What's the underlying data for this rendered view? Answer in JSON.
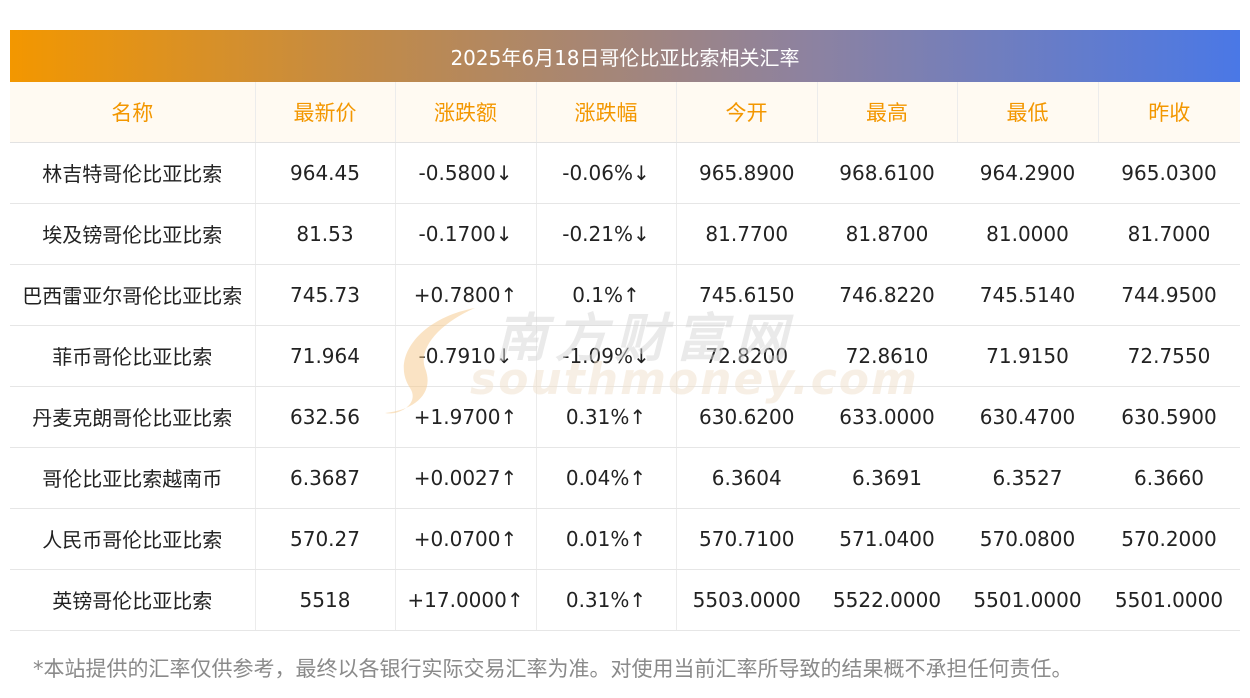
{
  "title": "2025年6月18日哥伦比亚比索相关汇率",
  "columns": [
    "名称",
    "最新价",
    "涨跌额",
    "涨跌幅",
    "今开",
    "最高",
    "最低",
    "昨收"
  ],
  "rows": [
    {
      "name": "林吉特哥伦比亚比索",
      "latest": "964.45",
      "change": "-0.5800↓",
      "pct": "-0.06%↓",
      "open": "965.8900",
      "high": "968.6100",
      "low": "964.2900",
      "prev": "965.0300",
      "dir": "down"
    },
    {
      "name": "埃及镑哥伦比亚比索",
      "latest": "81.53",
      "change": "-0.1700↓",
      "pct": "-0.21%↓",
      "open": "81.7700",
      "high": "81.8700",
      "low": "81.0000",
      "prev": "81.7000",
      "dir": "down"
    },
    {
      "name": "巴西雷亚尔哥伦比亚比索",
      "latest": "745.73",
      "change": "+0.7800↑",
      "pct": "0.1%↑",
      "open": "745.6150",
      "high": "746.8220",
      "low": "745.5140",
      "prev": "744.9500",
      "dir": "up"
    },
    {
      "name": "菲币哥伦比亚比索",
      "latest": "71.964",
      "change": "-0.7910↓",
      "pct": "-1.09%↓",
      "open": "72.8200",
      "high": "72.8610",
      "low": "71.9150",
      "prev": "72.7550",
      "dir": "down"
    },
    {
      "name": "丹麦克朗哥伦比亚比索",
      "latest": "632.56",
      "change": "+1.9700↑",
      "pct": "0.31%↑",
      "open": "630.6200",
      "high": "633.0000",
      "low": "630.4700",
      "prev": "630.5900",
      "dir": "up"
    },
    {
      "name": "哥伦比亚比索越南币",
      "latest": "6.3687",
      "change": "+0.0027↑",
      "pct": "0.04%↑",
      "open": "6.3604",
      "high": "6.3691",
      "low": "6.3527",
      "prev": "6.3660",
      "dir": "up"
    },
    {
      "name": "人民币哥伦比亚比索",
      "latest": "570.27",
      "change": "+0.0700↑",
      "pct": "0.01%↑",
      "open": "570.7100",
      "high": "571.0400",
      "low": "570.0800",
      "prev": "570.2000",
      "dir": "up"
    },
    {
      "name": "英镑哥伦比亚比索",
      "latest": "5518",
      "change": "+17.0000↑",
      "pct": "0.31%↑",
      "open": "5503.0000",
      "high": "5522.0000",
      "low": "5501.0000",
      "prev": "5501.0000",
      "dir": "up"
    }
  ],
  "watermark": {
    "cn": "南方财富网",
    "en": "southmoney.com"
  },
  "footnote": "*本站提供的汇率仅供参考，最终以各银行实际交易汇率为准。对使用当前汇率所导致的结果概不承担任何责任。",
  "colors": {
    "up": "#e60012",
    "down": "#1a8a1a",
    "header_text": "#f39700",
    "title_gradient_start": "#f39700",
    "title_gradient_end": "#4a78e6"
  }
}
